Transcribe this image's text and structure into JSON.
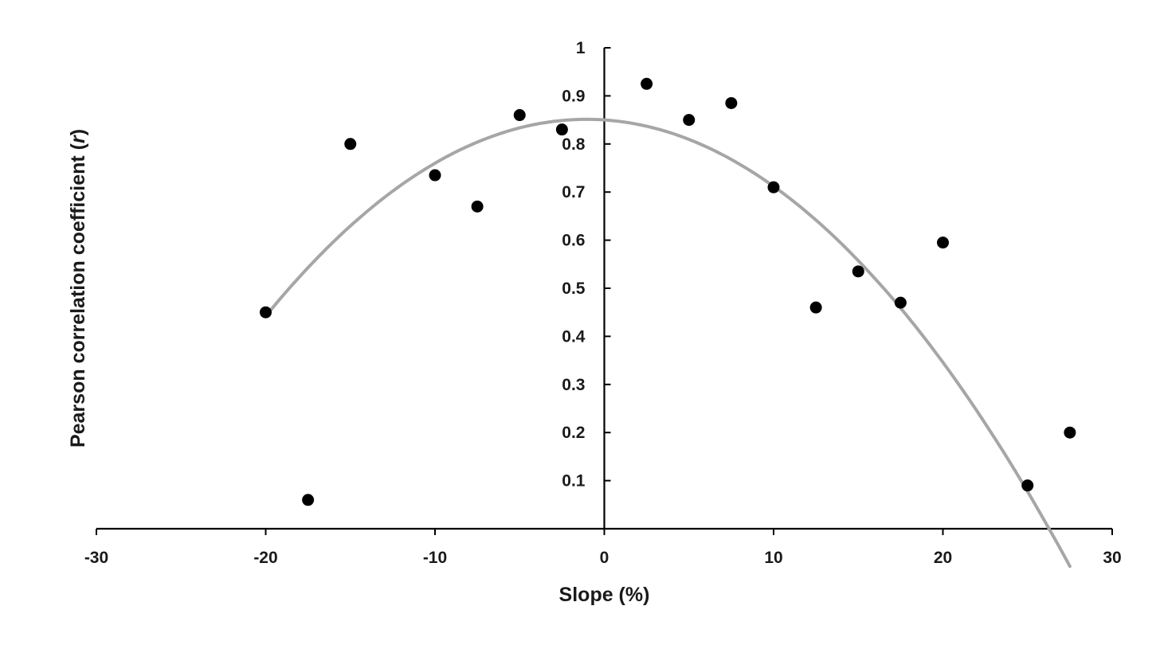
{
  "chart_data": {
    "type": "scatter",
    "title": "",
    "xlabel": "Slope (%)",
    "ylabel_text": "Pearson correlation coefficient (",
    "ylabel_italic": "r",
    "ylabel_close": ")",
    "xlim": [
      -30,
      30
    ],
    "ylim": [
      0,
      1
    ],
    "xticks": [
      -30,
      -20,
      -10,
      0,
      10,
      20,
      30
    ],
    "yticks": [
      0.1,
      0.2,
      0.3,
      0.4,
      0.5,
      0.6,
      0.7,
      0.8,
      0.9,
      1
    ],
    "grid": false,
    "legend": "none",
    "marker_color": "#000000",
    "trend_color": "#a6a6a6",
    "points": [
      {
        "x": -20,
        "y": 0.45
      },
      {
        "x": -17.5,
        "y": 0.06
      },
      {
        "x": -15,
        "y": 0.8
      },
      {
        "x": -10,
        "y": 0.735
      },
      {
        "x": -7.5,
        "y": 0.67
      },
      {
        "x": -5,
        "y": 0.86
      },
      {
        "x": -2.5,
        "y": 0.83
      },
      {
        "x": 2.5,
        "y": 0.925
      },
      {
        "x": 5,
        "y": 0.85
      },
      {
        "x": 7.5,
        "y": 0.885
      },
      {
        "x": 10,
        "y": 0.71
      },
      {
        "x": 12.5,
        "y": 0.46
      },
      {
        "x": 15,
        "y": 0.535
      },
      {
        "x": 17.5,
        "y": 0.47
      },
      {
        "x": 20,
        "y": 0.595
      },
      {
        "x": 25,
        "y": 0.09
      },
      {
        "x": 27.5,
        "y": 0.2
      }
    ],
    "trendline": {
      "type": "polynomial-2",
      "x_range": [
        -20,
        27.5
      ],
      "coefficients": {
        "a": -0.00114,
        "b": -0.0024,
        "c": 0.85
      }
    }
  }
}
